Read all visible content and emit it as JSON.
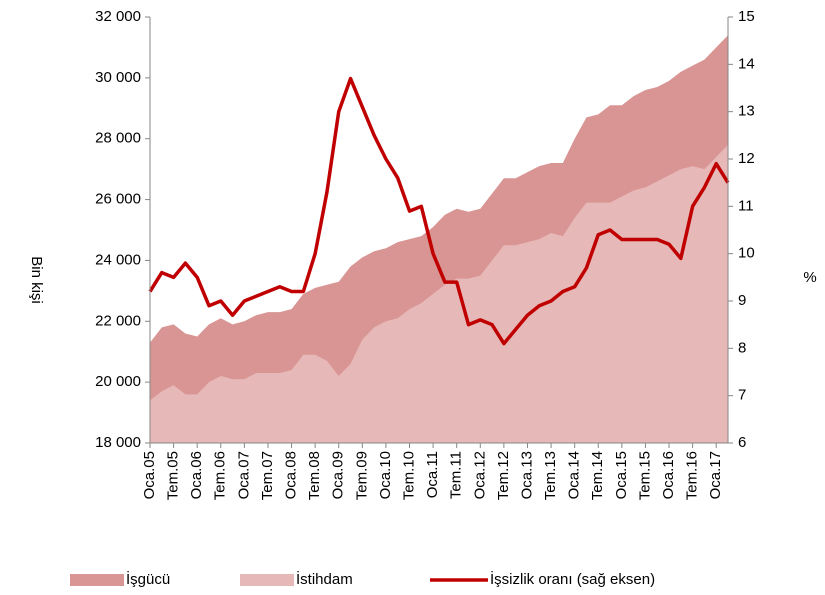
{
  "chart_data": {
    "type": "area_line",
    "y_label": "Bin kişi",
    "y2_label": "%",
    "categories": [
      "Oca.05",
      null,
      "Tem.05",
      null,
      "Oca.06",
      null,
      "Tem.06",
      null,
      "Oca.07",
      null,
      "Tem.07",
      null,
      "Oca.08",
      null,
      "Tem.08",
      null,
      "Oca.09",
      null,
      "Tem.09",
      null,
      "Oca.10",
      null,
      "Tem.10",
      null,
      "Oca.11",
      null,
      "Tem.11",
      null,
      "Oca.12",
      null,
      "Tem.12",
      null,
      "Oca.13",
      null,
      "Tem.13",
      null,
      "Oca.14",
      null,
      "Tem.14",
      null,
      "Oca.15",
      null,
      "Tem.15",
      null,
      "Oca.16",
      null,
      "Tem.16",
      null,
      "Oca.17",
      null
    ],
    "series": [
      {
        "name": "İşgücü",
        "kind": "area",
        "color": "#d99594",
        "values": [
          21300,
          21800,
          21900,
          21600,
          21500,
          21900,
          22100,
          21900,
          22000,
          22200,
          22300,
          22300,
          22400,
          22900,
          23100,
          23200,
          23300,
          23800,
          24100,
          24300,
          24400,
          24600,
          24700,
          24800,
          25100,
          25500,
          25700,
          25600,
          25700,
          26200,
          26700,
          26700,
          26900,
          27100,
          27200,
          27200,
          28000,
          28700,
          28800,
          29100,
          29100,
          29400,
          29600,
          29700,
          29900,
          30200,
          30400,
          30600,
          31000,
          31400
        ]
      },
      {
        "name": "İstihdam",
        "kind": "area",
        "color": "#e6b8b7",
        "values": [
          19400,
          19700,
          19900,
          19600,
          19600,
          20000,
          20200,
          20100,
          20100,
          20300,
          20300,
          20300,
          20400,
          20900,
          20900,
          20700,
          20200,
          20600,
          21400,
          21800,
          22000,
          22100,
          22400,
          22600,
          22900,
          23200,
          23400,
          23400,
          23500,
          24000,
          24500,
          24500,
          24600,
          24700,
          24900,
          24800,
          25400,
          25900,
          25900,
          25900,
          26100,
          26300,
          26400,
          26600,
          26800,
          27000,
          27100,
          27000,
          27400,
          27800
        ]
      },
      {
        "name": "İşsizlik oranı (sağ eksen)",
        "kind": "line",
        "axis": "y2",
        "color": "#c00000",
        "values": [
          9.2,
          9.6,
          9.5,
          9.8,
          9.5,
          8.9,
          9.0,
          8.7,
          9.0,
          9.1,
          9.2,
          9.3,
          9.2,
          9.2,
          10.0,
          11.3,
          13.0,
          13.7,
          13.1,
          12.5,
          12.0,
          11.6,
          10.9,
          11.0,
          10.0,
          9.4,
          9.4,
          8.5,
          8.6,
          8.5,
          8.1,
          8.4,
          8.7,
          8.9,
          9.0,
          9.2,
          9.3,
          9.7,
          10.4,
          10.5,
          10.3,
          10.3,
          10.3,
          10.3,
          10.2,
          9.9,
          11.0,
          11.4,
          11.9,
          11.5
        ]
      }
    ],
    "ylim": [
      18000,
      32000
    ],
    "yticks": [
      {
        "value": 18000,
        "label": "18 000"
      },
      {
        "value": 20000,
        "label": "20 000"
      },
      {
        "value": 22000,
        "label": "22 000"
      },
      {
        "value": 24000,
        "label": "24 000"
      },
      {
        "value": 26000,
        "label": "26 000"
      },
      {
        "value": 28000,
        "label": "28 000"
      },
      {
        "value": 30000,
        "label": "30 000"
      },
      {
        "value": 32000,
        "label": "32 000"
      }
    ],
    "y2lim": [
      6,
      15
    ],
    "y2ticks": [
      6,
      7,
      8,
      9,
      10,
      11,
      12,
      13,
      14,
      15
    ],
    "legend": "bottom"
  }
}
